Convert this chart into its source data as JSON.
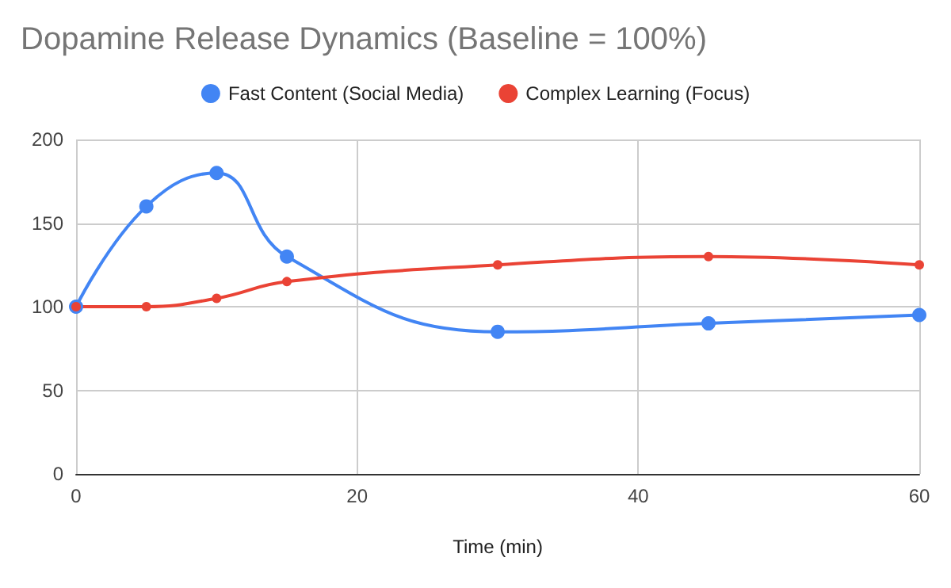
{
  "chart_data": {
    "type": "line",
    "title": "Dopamine Release Dynamics (Baseline = 100%)",
    "xlabel": "Time (min)",
    "x": [
      0,
      5,
      10,
      15,
      30,
      45,
      60
    ],
    "series": [
      {
        "name": "Fast Content (Social Media)",
        "color": "#4285f4",
        "values": [
          100,
          160,
          180,
          130,
          85,
          90,
          95
        ]
      },
      {
        "name": "Complex Learning (Focus)",
        "color": "#ea4335",
        "values": [
          100,
          100,
          105,
          115,
          125,
          130,
          125
        ]
      }
    ],
    "xlim": [
      0,
      60
    ],
    "xticks": [
      0,
      20,
      40,
      60
    ],
    "ylim": [
      0,
      200
    ],
    "yticks": [
      0,
      50,
      100,
      150,
      200
    ],
    "grid": true,
    "legend": "top",
    "marker": "circle",
    "line_style": "solid"
  }
}
